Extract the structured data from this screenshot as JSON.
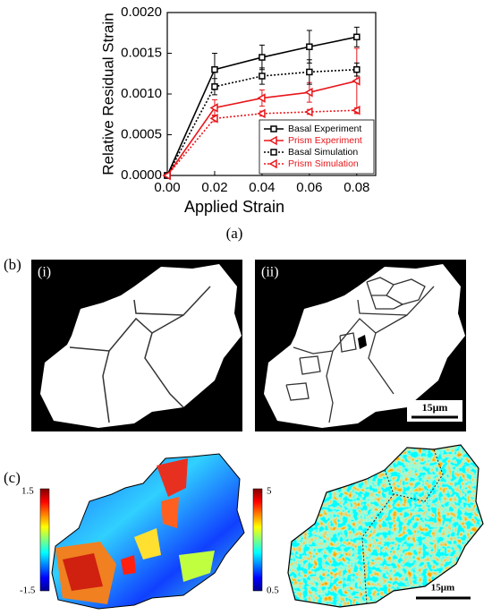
{
  "chart_data": {
    "type": "line",
    "x_label": "Applied Strain",
    "y_label": "Relative Residual Strain",
    "x": [
      0,
      0.02,
      0.04,
      0.06,
      0.08
    ],
    "xlim": [
      0,
      0.088
    ],
    "xticks": [
      {
        "value": 0,
        "label": "0.00"
      },
      0.02,
      0.04,
      0.06,
      0.08
    ],
    "ylim": [
      0,
      0.002
    ],
    "yticks": [
      {
        "value": 0,
        "label": "0.0000"
      },
      0.0005,
      {
        "value": 0.001,
        "label": "0.0010"
      },
      {
        "value": 0.0015,
        "label": "0.0015"
      },
      {
        "value": 0.002,
        "label": "0.0020"
      }
    ],
    "legend": "lower right",
    "series": [
      {
        "name": "Basal Experiment",
        "color": "#000000",
        "style": "solid",
        "marker": "square",
        "values": [
          0,
          0.0013,
          0.00145,
          0.00158,
          0.0017
        ],
        "errors": [
          null,
          0.0002,
          0.00015,
          0.0002,
          0.00012
        ]
      },
      {
        "name": "Prism Experiment",
        "color": "#e8161b",
        "style": "solid",
        "marker": "triangle-left",
        "values": [
          0,
          0.00083,
          0.00095,
          0.00102,
          0.00116
        ],
        "errors": [
          null,
          0.0001,
          0.0001,
          0.00012,
          0.0004
        ]
      },
      {
        "name": "Basal Simulation",
        "color": "#000000",
        "style": "dotted",
        "marker": "square",
        "values": [
          0,
          0.00109,
          0.00122,
          0.00127,
          0.0013
        ],
        "errors": [
          null,
          0.0001,
          0.0001,
          0.00015,
          8e-05
        ]
      },
      {
        "name": "Prism Simulation",
        "color": "#e8161b",
        "style": "dotted",
        "marker": "triangle-left",
        "values": [
          0,
          0.0007,
          0.00076,
          0.00078,
          0.0008
        ],
        "errors": [
          null,
          4e-05,
          3e-05,
          3e-05,
          3e-05
        ]
      }
    ]
  },
  "panels": {
    "a": "(a)",
    "b": "(b)",
    "b_i": "(i)",
    "b_ii": "(ii)",
    "b_scale": "15μm",
    "c": "(c)",
    "c_left_max": "1.5",
    "c_left_min": "-1.5",
    "c_right_max": "5",
    "c_right_min": "0.5",
    "c_scale": "15μm"
  }
}
